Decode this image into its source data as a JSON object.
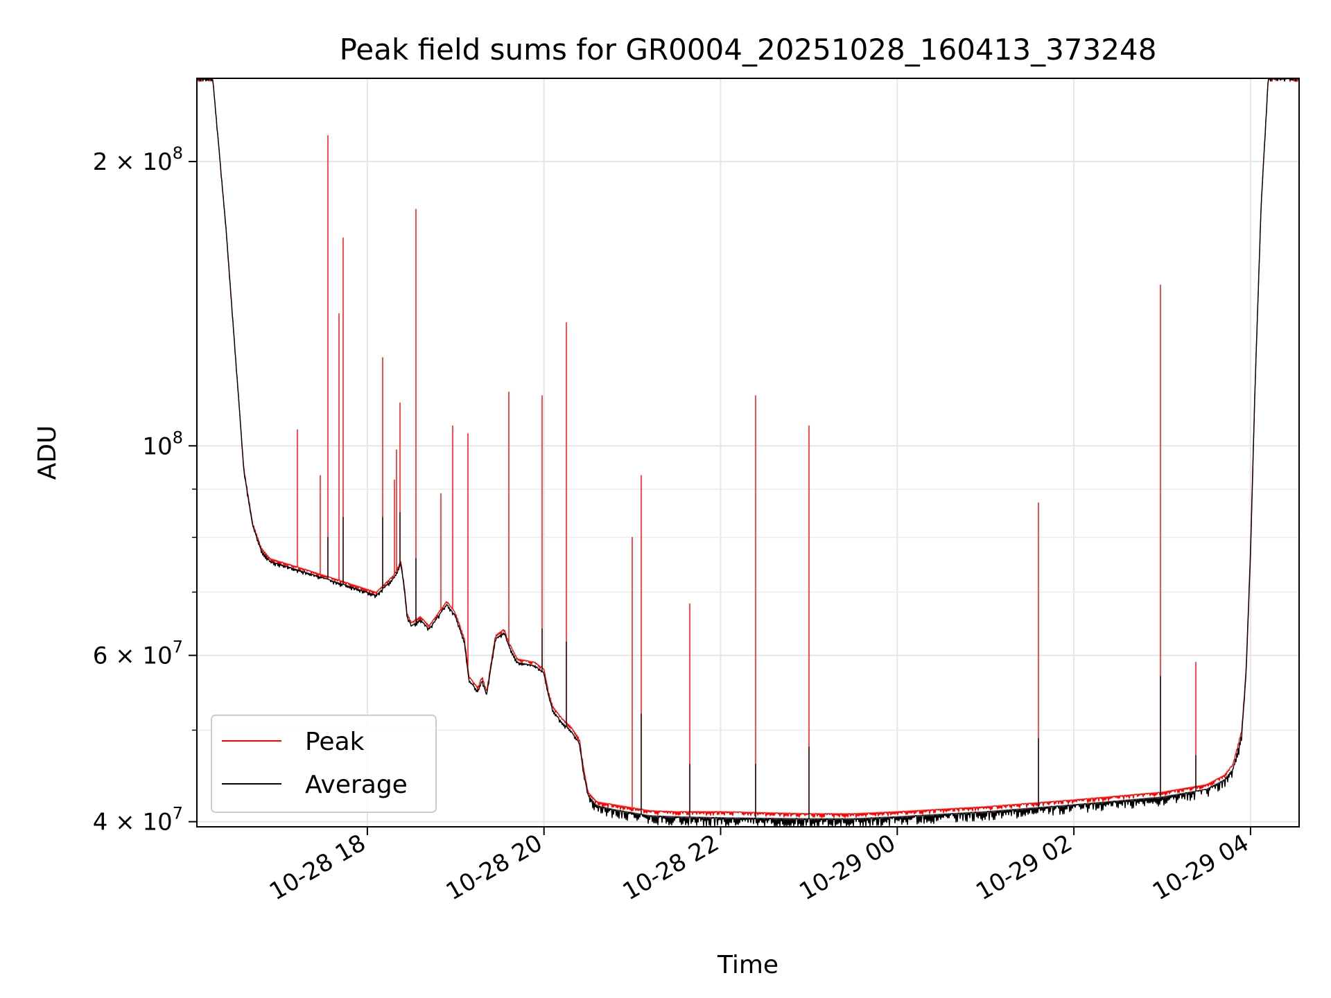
{
  "chart_data": {
    "type": "line",
    "title": "Peak field sums for GR0004_20251028_160413_373248",
    "xlabel": "Time",
    "ylabel": "ADU",
    "yscale": "log",
    "ylim": [
      39500000,
      245000000
    ],
    "xlim_hours": [
      16.07,
      28.55
    ],
    "grid": true,
    "legend_location": "lower-left",
    "x_ticks": [
      {
        "hour": 18,
        "label": "10-28 18"
      },
      {
        "hour": 20,
        "label": "10-28 20"
      },
      {
        "hour": 22,
        "label": "10-28 22"
      },
      {
        "hour": 24,
        "label": "10-29 00"
      },
      {
        "hour": 26,
        "label": "10-29 02"
      },
      {
        "hour": 28,
        "label": "10-29 04"
      }
    ],
    "y_major_ticks": [
      {
        "value": 40000000,
        "mantissa": "4",
        "exponent": "7"
      },
      {
        "value": 60000000,
        "mantissa": "6",
        "exponent": "7"
      },
      {
        "value": 100000000,
        "mantissa": "",
        "exponent": "8"
      },
      {
        "value": 200000000,
        "mantissa": "2",
        "exponent": "8"
      }
    ],
    "y_minor_ticks": [
      50000000,
      70000000,
      80000000,
      90000000
    ],
    "series": [
      {
        "name": "Peak",
        "color": "#ff0000",
        "baseline": [
          [
            16.07,
            245000000
          ],
          [
            16.25,
            245000000
          ],
          [
            16.4,
            170000000
          ],
          [
            16.55,
            110000000
          ],
          [
            16.6,
            95000000
          ],
          [
            16.7,
            83000000
          ],
          [
            16.8,
            78000000
          ],
          [
            16.9,
            76000000
          ],
          [
            17.2,
            74500000
          ],
          [
            17.5,
            73000000
          ],
          [
            17.8,
            71500000
          ],
          [
            18.0,
            70500000
          ],
          [
            18.1,
            70000000
          ],
          [
            18.2,
            71500000
          ],
          [
            18.3,
            73000000
          ],
          [
            18.38,
            75500000
          ],
          [
            18.42,
            71000000
          ],
          [
            18.45,
            66500000
          ],
          [
            18.5,
            65000000
          ],
          [
            18.6,
            66000000
          ],
          [
            18.7,
            64500000
          ],
          [
            18.8,
            66500000
          ],
          [
            18.9,
            68500000
          ],
          [
            19.0,
            66500000
          ],
          [
            19.1,
            62500000
          ],
          [
            19.15,
            57000000
          ],
          [
            19.25,
            55500000
          ],
          [
            19.3,
            57000000
          ],
          [
            19.35,
            55000000
          ],
          [
            19.45,
            63000000
          ],
          [
            19.55,
            64000000
          ],
          [
            19.6,
            62000000
          ],
          [
            19.7,
            59500000
          ],
          [
            19.9,
            59000000
          ],
          [
            20.0,
            58000000
          ],
          [
            20.05,
            55000000
          ],
          [
            20.1,
            53000000
          ],
          [
            20.2,
            51500000
          ],
          [
            20.3,
            50500000
          ],
          [
            20.4,
            49000000
          ],
          [
            20.45,
            45500000
          ],
          [
            20.5,
            43000000
          ],
          [
            20.6,
            42000000
          ],
          [
            20.8,
            41700000
          ],
          [
            21.0,
            41400000
          ],
          [
            21.2,
            41100000
          ],
          [
            21.5,
            41000000
          ],
          [
            22.0,
            41000000
          ],
          [
            23.0,
            40800000
          ],
          [
            23.5,
            40800000
          ],
          [
            24.0,
            41000000
          ],
          [
            25.0,
            41500000
          ],
          [
            26.0,
            42200000
          ],
          [
            27.0,
            43000000
          ],
          [
            27.5,
            43800000
          ],
          [
            27.7,
            44800000
          ],
          [
            27.8,
            46000000
          ],
          [
            27.9,
            50000000
          ],
          [
            27.95,
            58000000
          ],
          [
            28.0,
            78000000
          ],
          [
            28.05,
            115000000
          ],
          [
            28.12,
            180000000
          ],
          [
            28.2,
            245000000
          ],
          [
            28.55,
            245000000
          ]
        ],
        "spikes": [
          [
            17.21,
            104000000
          ],
          [
            17.47,
            93000000
          ],
          [
            17.55,
            213000000
          ],
          [
            17.68,
            138000000
          ],
          [
            17.73,
            166000000
          ],
          [
            18.17,
            124000000
          ],
          [
            18.31,
            92000000
          ],
          [
            18.33,
            99000000
          ],
          [
            18.37,
            111000000
          ],
          [
            18.55,
            178000000
          ],
          [
            18.83,
            89000000
          ],
          [
            18.97,
            105000000
          ],
          [
            19.14,
            103000000
          ],
          [
            19.6,
            114000000
          ],
          [
            19.98,
            113000000
          ],
          [
            20.25,
            135000000
          ],
          [
            21.0,
            80000000
          ],
          [
            21.1,
            93000000
          ],
          [
            21.65,
            68000000
          ],
          [
            22.4,
            113000000
          ],
          [
            23.0,
            105000000
          ],
          [
            25.6,
            87000000
          ],
          [
            26.98,
            148000000
          ],
          [
            27.38,
            59000000
          ]
        ]
      },
      {
        "name": "Average",
        "color": "#000000",
        "baseline": [
          [
            16.07,
            245000000
          ],
          [
            16.25,
            245000000
          ],
          [
            16.4,
            170000000
          ],
          [
            16.55,
            110000000
          ],
          [
            16.6,
            94500000
          ],
          [
            16.7,
            82500000
          ],
          [
            16.8,
            77500000
          ],
          [
            16.9,
            75500000
          ],
          [
            17.2,
            74000000
          ],
          [
            17.5,
            72500000
          ],
          [
            17.8,
            71000000
          ],
          [
            18.0,
            70000000
          ],
          [
            18.1,
            69500000
          ],
          [
            18.2,
            71000000
          ],
          [
            18.3,
            72500000
          ],
          [
            18.38,
            75000000
          ],
          [
            18.42,
            70500000
          ],
          [
            18.45,
            66000000
          ],
          [
            18.5,
            64500000
          ],
          [
            18.6,
            65500000
          ],
          [
            18.7,
            64000000
          ],
          [
            18.8,
            66000000
          ],
          [
            18.9,
            68000000
          ],
          [
            19.0,
            66000000
          ],
          [
            19.1,
            62000000
          ],
          [
            19.15,
            56500000
          ],
          [
            19.25,
            55000000
          ],
          [
            19.3,
            56500000
          ],
          [
            19.35,
            54500000
          ],
          [
            19.45,
            62500000
          ],
          [
            19.55,
            63500000
          ],
          [
            19.6,
            61500000
          ],
          [
            19.7,
            59000000
          ],
          [
            19.9,
            58500000
          ],
          [
            20.0,
            57500000
          ],
          [
            20.05,
            54500000
          ],
          [
            20.1,
            52500000
          ],
          [
            20.2,
            51000000
          ],
          [
            20.3,
            50000000
          ],
          [
            20.4,
            48500000
          ],
          [
            20.45,
            45000000
          ],
          [
            20.5,
            42700000
          ],
          [
            20.6,
            41600000
          ],
          [
            20.8,
            41200000
          ],
          [
            21.0,
            40900000
          ],
          [
            21.2,
            40600000
          ],
          [
            21.5,
            40500000
          ],
          [
            22.0,
            40400000
          ],
          [
            23.0,
            40300000
          ],
          [
            23.5,
            40300000
          ],
          [
            24.0,
            40500000
          ],
          [
            25.0,
            41000000
          ],
          [
            26.0,
            41700000
          ],
          [
            27.0,
            42500000
          ],
          [
            27.5,
            43300000
          ],
          [
            27.7,
            44300000
          ],
          [
            27.8,
            45500000
          ],
          [
            27.9,
            49500000
          ],
          [
            27.95,
            57500000
          ],
          [
            28.0,
            77000000
          ],
          [
            28.05,
            115000000
          ],
          [
            28.12,
            180000000
          ],
          [
            28.2,
            245000000
          ],
          [
            28.55,
            245000000
          ]
        ],
        "spikes": [
          [
            17.55,
            80000000
          ],
          [
            17.73,
            84000000
          ],
          [
            18.17,
            84000000
          ],
          [
            18.37,
            85000000
          ],
          [
            18.55,
            76000000
          ],
          [
            19.98,
            64000000
          ],
          [
            20.25,
            62000000
          ],
          [
            21.1,
            52000000
          ],
          [
            21.65,
            46000000
          ],
          [
            22.4,
            46000000
          ],
          [
            23.0,
            48000000
          ],
          [
            25.6,
            49000000
          ],
          [
            26.98,
            57000000
          ],
          [
            27.38,
            47000000
          ]
        ]
      }
    ]
  }
}
